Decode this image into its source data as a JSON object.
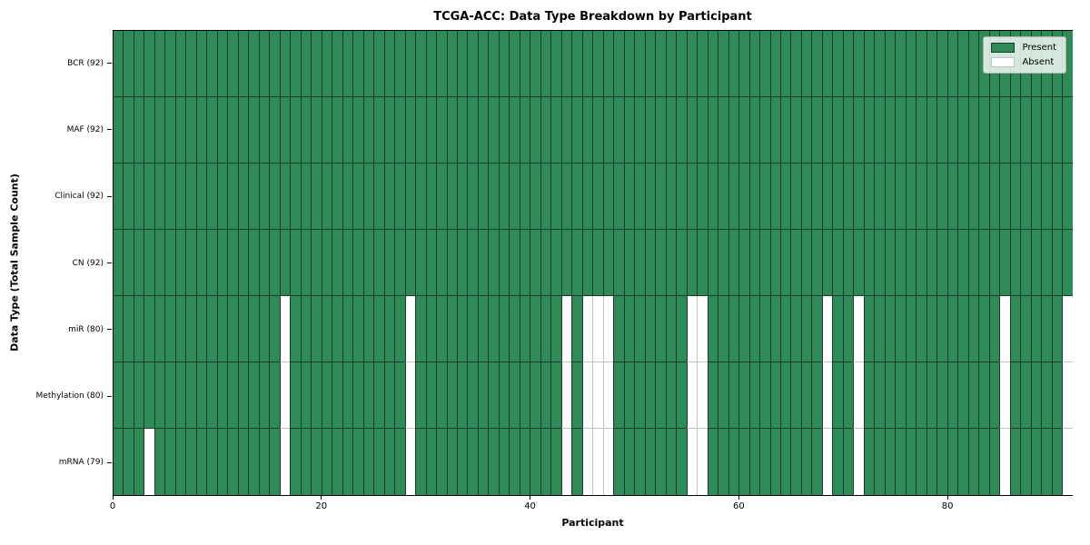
{
  "chart_data": {
    "type": "heatmap",
    "title": "TCGA-ACC: Data Type Breakdown by Participant",
    "xlabel": "Participant",
    "ylabel": "Data Type (Total Sample Count)",
    "n_participants": 92,
    "xlim": [
      0,
      92
    ],
    "x_ticks": [
      0,
      20,
      40,
      60,
      80
    ],
    "grid": false,
    "rows": [
      {
        "name": "BCR",
        "label": "BCR (92)",
        "present_count": 92,
        "absent_participants": []
      },
      {
        "name": "MAF",
        "label": "MAF (92)",
        "present_count": 92,
        "absent_participants": []
      },
      {
        "name": "Clinical",
        "label": "Clinical (92)",
        "present_count": 92,
        "absent_participants": []
      },
      {
        "name": "CN",
        "label": "CN (92)",
        "present_count": 92,
        "absent_participants": []
      },
      {
        "name": "miR",
        "label": "miR (80)",
        "present_count": 80,
        "absent_participants": [
          16,
          28,
          43,
          45,
          46,
          47,
          55,
          56,
          68,
          71,
          85,
          91
        ]
      },
      {
        "name": "Methylation",
        "label": "Methylation (80)",
        "present_count": 80,
        "absent_participants": [
          16,
          28,
          43,
          45,
          46,
          47,
          55,
          56,
          68,
          71,
          85,
          91
        ]
      },
      {
        "name": "mRNA",
        "label": "mRNA (79)",
        "present_count": 79,
        "absent_participants": [
          3,
          16,
          28,
          43,
          45,
          46,
          47,
          55,
          56,
          68,
          71,
          85,
          91
        ]
      }
    ],
    "legend": {
      "position": "upper right",
      "entries": [
        {
          "label": "Present",
          "color": "#2e8b57"
        },
        {
          "label": "Absent",
          "color": "#ffffff"
        }
      ]
    },
    "colors": {
      "present": "#2e8b57",
      "absent": "#ffffff",
      "present_edge": "#1d3b2b",
      "absent_edge": "#c3c3c3"
    }
  }
}
